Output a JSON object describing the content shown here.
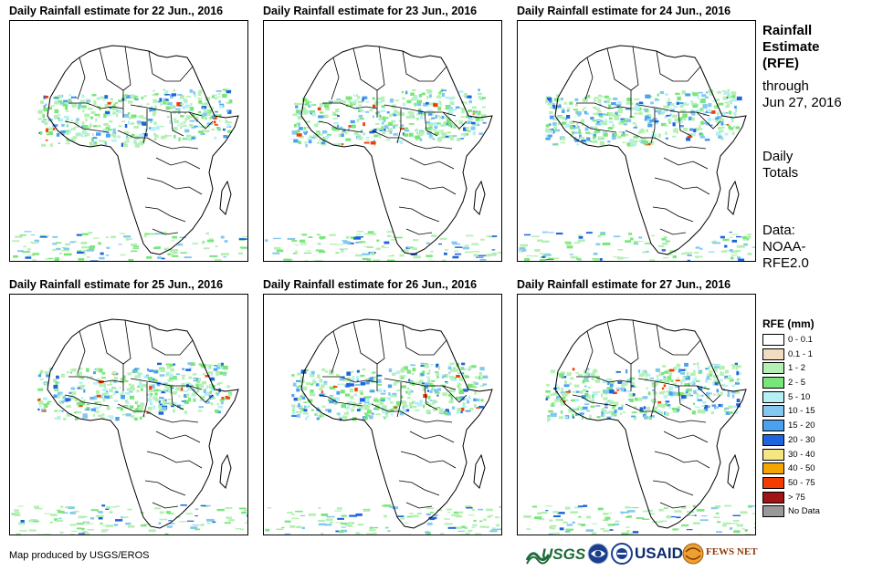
{
  "panels": [
    {
      "title": "Daily Rainfall estimate for 22 Jun., 2016"
    },
    {
      "title": "Daily Rainfall estimate for 23 Jun., 2016"
    },
    {
      "title": "Daily Rainfall estimate for 24 Jun., 2016"
    },
    {
      "title": "Daily Rainfall estimate for 25 Jun., 2016"
    },
    {
      "title": "Daily Rainfall estimate for 26 Jun., 2016"
    },
    {
      "title": "Daily Rainfall estimate for 27 Jun., 2016"
    }
  ],
  "side": {
    "title_line1": "Rainfall",
    "title_line2": "Estimate",
    "title_line3": "(RFE)",
    "through": "through",
    "date": "Jun 27, 2016",
    "daily1": "Daily",
    "daily2": "Totals",
    "data1": "Data:",
    "data2": "NOAA-",
    "data3": "RFE2.0"
  },
  "legend": {
    "title": "RFE (mm)",
    "items": [
      {
        "label": "0 - 0.1",
        "color": "#ffffff"
      },
      {
        "label": "0.1 - 1",
        "color": "#f0dcc0"
      },
      {
        "label": "1 - 2",
        "color": "#b4f0b4"
      },
      {
        "label": "2 - 5",
        "color": "#78e678"
      },
      {
        "label": "5 - 10",
        "color": "#b4f0f5"
      },
      {
        "label": "10 - 15",
        "color": "#82c8f0"
      },
      {
        "label": "15 - 20",
        "color": "#4ba0f0"
      },
      {
        "label": "20 - 30",
        "color": "#1e64dc"
      },
      {
        "label": "30 - 40",
        "color": "#f5e682"
      },
      {
        "label": "40 - 50",
        "color": "#f5a500"
      },
      {
        "label": "50 - 75",
        "color": "#f53c00"
      },
      {
        "label": "> 75",
        "color": "#a01414"
      },
      {
        "label": "No Data",
        "color": "#999999"
      }
    ]
  },
  "credit": "Map produced by USGS/EROS",
  "logos": {
    "usgs": "USGS",
    "usaid": "USAID",
    "fewsnet": "FEWS NET"
  }
}
